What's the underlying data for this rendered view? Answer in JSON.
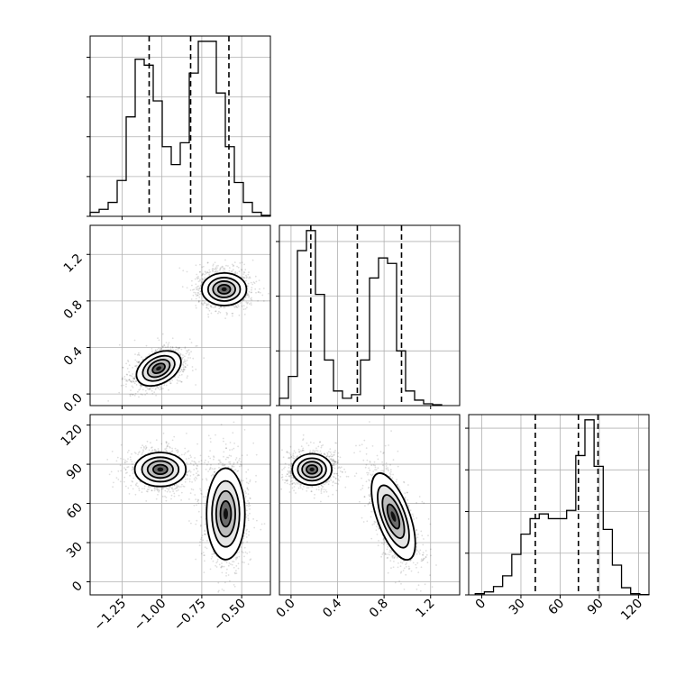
{
  "chart_data": {
    "type": "corner",
    "grid": true,
    "parameters": [
      {
        "id": "p0",
        "range": [
          -1.45,
          -0.32
        ],
        "ticks": [
          -1.25,
          -1.0,
          -0.75,
          -0.5
        ],
        "tick_labels": [
          "−1.25",
          "−1.00",
          "−0.75",
          "−0.50"
        ],
        "quantiles": [
          -1.08,
          -0.82,
          -0.58
        ],
        "histogram": {
          "edges_start": -1.45,
          "bin_width": 0.0565,
          "counts": [
            20,
            35,
            70,
            180,
            500,
            790,
            760,
            580,
            350,
            260,
            370,
            720,
            880,
            880,
            620,
            350,
            170,
            70,
            20,
            5
          ]
        },
        "hist_ticks": [
          0,
          200,
          400,
          600,
          800
        ]
      },
      {
        "id": "p1",
        "range": [
          -0.1,
          1.45
        ],
        "ticks": [
          0.0,
          0.4,
          0.8,
          1.2
        ],
        "tick_labels": [
          "0.0",
          "0.4",
          "0.8",
          "1.2"
        ],
        "quantiles": [
          0.17,
          0.57,
          0.95
        ],
        "histogram": {
          "edges_start": -0.1,
          "bin_width": 0.0775,
          "counts": [
            40,
            160,
            850,
            960,
            610,
            250,
            80,
            40,
            60,
            250,
            700,
            810,
            780,
            300,
            80,
            30,
            10,
            5
          ]
        },
        "hist_ticks": [
          0,
          300,
          600,
          900
        ]
      },
      {
        "id": "p2",
        "range": [
          -10,
          128
        ],
        "ticks": [
          0,
          30,
          60,
          90,
          120
        ],
        "tick_labels": [
          "0",
          "30",
          "60",
          "90",
          "120"
        ],
        "quantiles": [
          41,
          74,
          89
        ],
        "histogram": {
          "edges_start": -5,
          "bin_width": 7,
          "counts": [
            10,
            25,
            70,
            160,
            340,
            510,
            640,
            680,
            640,
            640,
            710,
            1170,
            1470,
            1080,
            550,
            250,
            60,
            10,
            3
          ]
        },
        "hist_ticks": [
          0,
          350,
          700,
          1050,
          1400
        ]
      }
    ],
    "pairs": [
      {
        "x": "p0",
        "y": "p1",
        "clusters": [
          {
            "center": [
              -1.02,
              0.22
            ],
            "rx": 0.15,
            "ry": 0.13,
            "tilt": -0.5
          },
          {
            "center": [
              -0.61,
              0.9
            ],
            "rx": 0.14,
            "ry": 0.14,
            "tilt": 0.0
          }
        ]
      },
      {
        "x": "p0",
        "y": "p2",
        "clusters": [
          {
            "center": [
              -1.01,
              86
            ],
            "rx": 0.16,
            "ry": 13,
            "tilt": 0.0
          },
          {
            "center": [
              -0.6,
              52
            ],
            "rx": 0.12,
            "ry": 35,
            "tilt": 0.0
          }
        ]
      },
      {
        "x": "p1",
        "y": "p2",
        "clusters": [
          {
            "center": [
              0.18,
              86
            ],
            "rx": 0.17,
            "ry": 12,
            "tilt": 0.0
          },
          {
            "center": [
              0.88,
              50
            ],
            "rx": 0.14,
            "ry": 35,
            "tilt": -0.35
          }
        ]
      }
    ]
  }
}
